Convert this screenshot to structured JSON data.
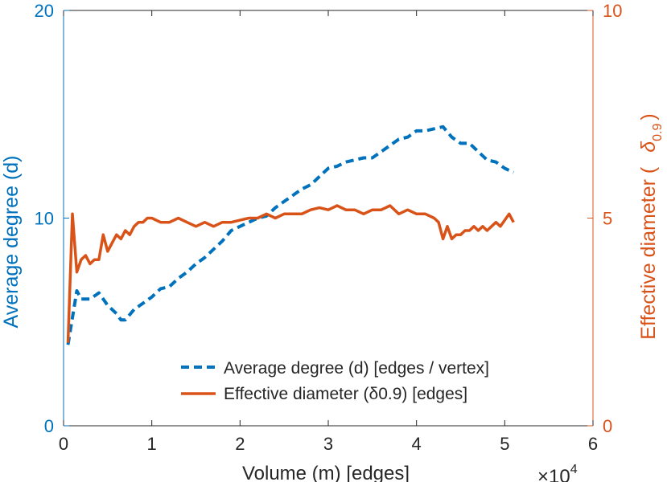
{
  "chart_data": {
    "type": "line",
    "xlabel": "Volume (m) [edges]",
    "x_exponent_label": "×10",
    "x_exponent_power": "4",
    "xlim": [
      0,
      60000
    ],
    "x_ticks": [
      "0",
      "1",
      "2",
      "3",
      "4",
      "5",
      "6"
    ],
    "ylabel_left": "Average degree (d)",
    "ylim_left": [
      0,
      20
    ],
    "y_ticks_left": [
      "0",
      "10",
      "20"
    ],
    "ylabel_right_prefix": "Effective diameter (",
    "ylabel_right_symbol": "δ",
    "ylabel_right_sub": "0.9",
    "ylabel_right_suffix": ")",
    "ylim_right": [
      0,
      10
    ],
    "y_ticks_right": [
      "0",
      "5",
      "10"
    ],
    "grid": false,
    "legend_position": "bottom-right",
    "colors": {
      "left": "#0072BD",
      "right": "#D95319",
      "axis": "#262626"
    },
    "series": [
      {
        "name": "Average degree (d) [edges / vertex]",
        "axis": "left",
        "style": "dashed",
        "x": [
          500,
          1000,
          1500,
          2000,
          3000,
          4000,
          5000,
          6000,
          6500,
          7000,
          8000,
          9000,
          10000,
          11000,
          12000,
          13000,
          14000,
          15000,
          16000,
          17000,
          18000,
          19000,
          20000,
          21000,
          22000,
          23000,
          24000,
          25000,
          26000,
          27000,
          28000,
          29000,
          30000,
          31000,
          32000,
          33000,
          34000,
          35000,
          36000,
          37000,
          38000,
          39000,
          40000,
          41000,
          42000,
          43000,
          44000,
          45000,
          46000,
          47000,
          48000,
          49000,
          50000,
          51000
        ],
        "values": [
          3.9,
          5.2,
          6.5,
          6.1,
          6.1,
          6.4,
          5.8,
          5.4,
          5.1,
          5.1,
          5.6,
          5.9,
          6.2,
          6.6,
          6.7,
          7.1,
          7.4,
          7.8,
          8.1,
          8.5,
          8.9,
          9.4,
          9.6,
          9.8,
          10.0,
          10.1,
          10.5,
          10.8,
          11.1,
          11.4,
          11.6,
          12.0,
          12.4,
          12.5,
          12.7,
          12.8,
          12.9,
          12.9,
          13.2,
          13.5,
          13.8,
          13.9,
          14.2,
          14.2,
          14.3,
          14.4,
          13.9,
          13.6,
          13.6,
          13.2,
          12.8,
          12.7,
          12.4,
          12.2
        ]
      },
      {
        "name": "Effective diameter (δ0.9) [edges]",
        "axis": "right",
        "style": "solid",
        "x": [
          500,
          1000,
          1500,
          2000,
          2500,
          3000,
          3500,
          4000,
          4500,
          5000,
          5500,
          6000,
          6500,
          7000,
          7500,
          8000,
          8500,
          9000,
          9500,
          10000,
          11000,
          12000,
          13000,
          14000,
          15000,
          16000,
          17000,
          18000,
          19000,
          20000,
          21000,
          22000,
          23000,
          24000,
          25000,
          26000,
          27000,
          28000,
          29000,
          30000,
          31000,
          32000,
          33000,
          34000,
          35000,
          36000,
          37000,
          38000,
          39000,
          40000,
          41000,
          42000,
          42500,
          43000,
          43500,
          44000,
          44500,
          45000,
          45500,
          46000,
          46500,
          47000,
          47500,
          48000,
          48500,
          49000,
          49500,
          50000,
          50500,
          51000
        ],
        "values": [
          2.0,
          5.1,
          3.7,
          4.0,
          4.1,
          3.9,
          4.0,
          4.0,
          4.6,
          4.2,
          4.4,
          4.6,
          4.5,
          4.7,
          4.6,
          4.8,
          4.9,
          4.9,
          5.0,
          5.0,
          4.9,
          4.9,
          5.0,
          4.9,
          4.8,
          4.9,
          4.8,
          4.9,
          4.9,
          4.95,
          5.0,
          5.0,
          5.1,
          5.0,
          5.1,
          5.1,
          5.1,
          5.2,
          5.25,
          5.2,
          5.3,
          5.2,
          5.2,
          5.1,
          5.2,
          5.2,
          5.3,
          5.1,
          5.2,
          5.1,
          5.1,
          5.0,
          4.9,
          4.5,
          4.8,
          4.5,
          4.6,
          4.6,
          4.7,
          4.7,
          4.8,
          4.7,
          4.8,
          4.7,
          4.8,
          4.9,
          4.8,
          4.95,
          5.1,
          4.9
        ]
      }
    ]
  }
}
